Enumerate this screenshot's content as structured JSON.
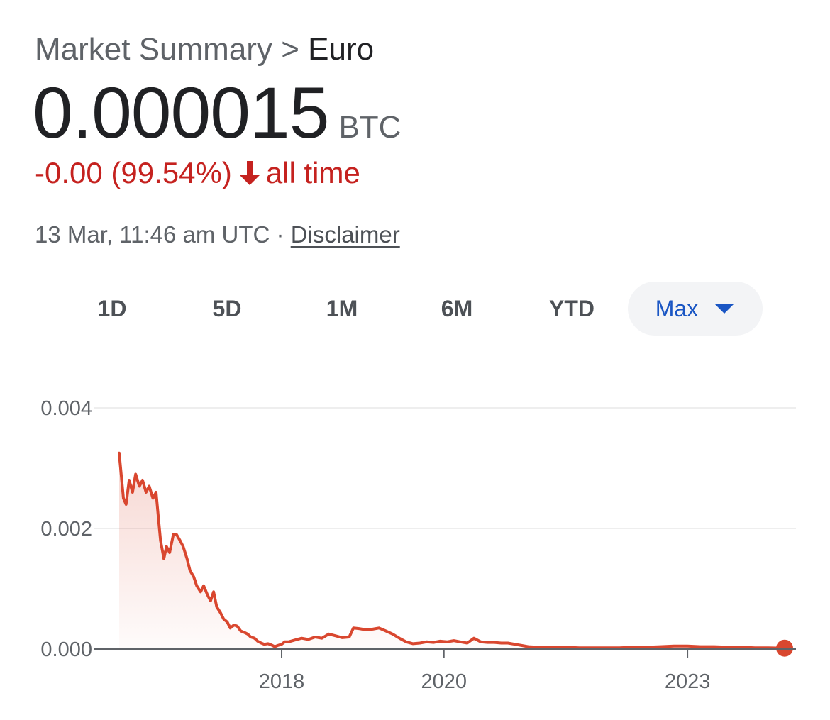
{
  "header": {
    "breadcrumb_parent": "Market Summary",
    "breadcrumb_separator": ">",
    "breadcrumb_current": "Euro"
  },
  "quote": {
    "price": "0.000015",
    "unit": "BTC",
    "change_text": "-0.00 (99.54%)",
    "change_direction": "down",
    "change_period": "all time",
    "change_color": "#c5221f"
  },
  "meta": {
    "timestamp": "13 Mar, 11:46 am UTC",
    "separator": "·",
    "disclaimer_label": "Disclaimer"
  },
  "range_tabs": [
    {
      "label": "1D",
      "selected": false
    },
    {
      "label": "5D",
      "selected": false
    },
    {
      "label": "1M",
      "selected": false
    },
    {
      "label": "6M",
      "selected": false
    },
    {
      "label": "YTD",
      "selected": false
    },
    {
      "label": "Max",
      "selected": true
    }
  ],
  "chart_data": {
    "type": "area",
    "title": "",
    "xlabel": "",
    "ylabel": "",
    "ylim": [
      0,
      0.004
    ],
    "xlim": [
      "2016-01-01",
      "2024-03-13"
    ],
    "y_ticks": [
      {
        "value": 0.0,
        "label": "0.000"
      },
      {
        "value": 0.002,
        "label": "0.002"
      },
      {
        "value": 0.004,
        "label": "0.004"
      }
    ],
    "x_ticks": [
      {
        "value": "2018-01-01",
        "label": "2018"
      },
      {
        "value": "2020-01-01",
        "label": "2020"
      },
      {
        "value": "2023-01-01",
        "label": "2023"
      }
    ],
    "grid": true,
    "line_color": "#d9472f",
    "series": [
      {
        "x": [
          "2016-01-01",
          "2016-01-10",
          "2016-01-20",
          "2016-02-01",
          "2016-02-15",
          "2016-03-01",
          "2016-03-15",
          "2016-04-01",
          "2016-04-15",
          "2016-05-01",
          "2016-05-15",
          "2016-06-01",
          "2016-06-15",
          "2016-06-25",
          "2016-07-05",
          "2016-07-20",
          "2016-08-01",
          "2016-08-15",
          "2016-09-01",
          "2016-09-15",
          "2016-10-01",
          "2016-10-15",
          "2016-11-01",
          "2016-11-15",
          "2016-12-01",
          "2016-12-15",
          "2017-01-01",
          "2017-01-15",
          "2017-02-01",
          "2017-02-15",
          "2017-03-01",
          "2017-03-15",
          "2017-04-01",
          "2017-04-15",
          "2017-05-01",
          "2017-05-15",
          "2017-06-01",
          "2017-06-15",
          "2017-07-01",
          "2017-07-15",
          "2017-08-01",
          "2017-08-15",
          "2017-09-01",
          "2017-09-15",
          "2017-10-01",
          "2017-10-15",
          "2017-11-01",
          "2017-11-15",
          "2017-12-01",
          "2017-12-15",
          "2018-01-01",
          "2018-01-15",
          "2018-02-01",
          "2018-03-01",
          "2018-04-01",
          "2018-05-01",
          "2018-06-01",
          "2018-07-01",
          "2018-08-01",
          "2018-09-01",
          "2018-10-01",
          "2018-11-01",
          "2018-11-20",
          "2018-12-15",
          "2019-01-15",
          "2019-02-15",
          "2019-03-15",
          "2019-04-15",
          "2019-05-15",
          "2019-06-15",
          "2019-07-15",
          "2019-08-15",
          "2019-09-15",
          "2019-10-15",
          "2019-11-15",
          "2019-12-15",
          "2020-01-15",
          "2020-02-15",
          "2020-03-15",
          "2020-04-15",
          "2020-05-15",
          "2020-06-15",
          "2020-07-15",
          "2020-08-15",
          "2020-09-15",
          "2020-10-15",
          "2020-11-15",
          "2020-12-15",
          "2021-01-15",
          "2021-03-01",
          "2021-05-01",
          "2021-07-01",
          "2021-09-01",
          "2021-11-01",
          "2022-01-01",
          "2022-03-01",
          "2022-05-01",
          "2022-07-01",
          "2022-09-01",
          "2022-11-01",
          "2023-01-01",
          "2023-03-01",
          "2023-05-01",
          "2023-07-01",
          "2023-09-01",
          "2023-11-01",
          "2024-01-01",
          "2024-03-13"
        ],
        "y": [
          0.00325,
          0.0029,
          0.0025,
          0.0024,
          0.0028,
          0.0026,
          0.0029,
          0.0027,
          0.0028,
          0.0026,
          0.0027,
          0.0025,
          0.0026,
          0.0022,
          0.0018,
          0.0015,
          0.0017,
          0.0016,
          0.0019,
          0.0019,
          0.0018,
          0.0017,
          0.0015,
          0.0013,
          0.0012,
          0.00105,
          0.00095,
          0.00105,
          0.0009,
          0.0008,
          0.00095,
          0.0007,
          0.0006,
          0.0005,
          0.00045,
          0.00035,
          0.0004,
          0.00038,
          0.0003,
          0.00028,
          0.00025,
          0.0002,
          0.00018,
          0.00013,
          0.0001,
          8e-05,
          9e-05,
          7e-05,
          4e-05,
          6e-05,
          8e-05,
          0.00012,
          0.00012,
          0.00015,
          0.00018,
          0.00016,
          0.0002,
          0.00018,
          0.00025,
          0.00022,
          0.00019,
          0.0002,
          0.00035,
          0.00034,
          0.00032,
          0.00033,
          0.00035,
          0.0003,
          0.00025,
          0.00018,
          0.00012,
          9e-05,
          0.0001,
          0.00012,
          0.00011,
          0.00013,
          0.00012,
          0.00014,
          0.00012,
          0.0001,
          0.00018,
          0.00012,
          0.00011,
          0.00011,
          0.0001,
          0.0001,
          8e-05,
          6e-05,
          4e-05,
          3e-05,
          3e-05,
          3e-05,
          2e-05,
          2e-05,
          2e-05,
          2e-05,
          3e-05,
          3e-05,
          4e-05,
          5e-05,
          5e-05,
          4e-05,
          4e-05,
          3e-05,
          3e-05,
          2e-05,
          2e-05,
          1.5e-05
        ]
      }
    ]
  }
}
